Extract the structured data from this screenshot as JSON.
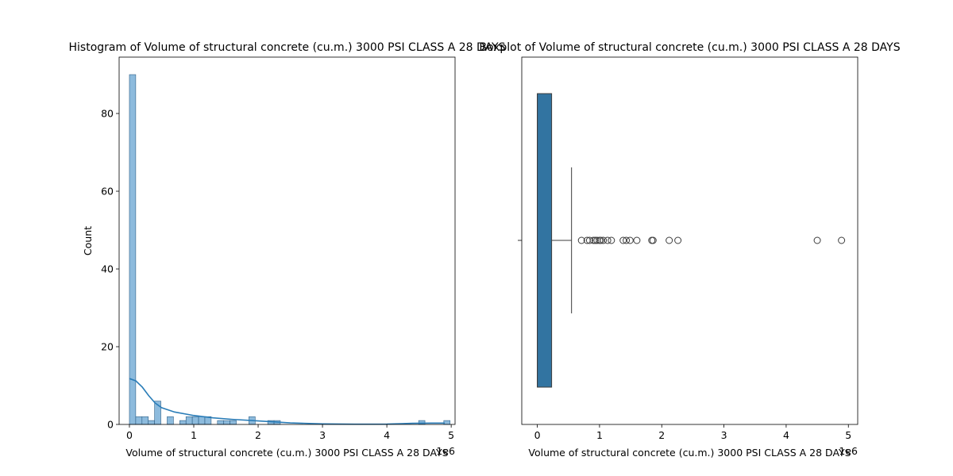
{
  "chart_data": [
    {
      "type": "histogram",
      "title": "Histogram of Volume of structural concrete (cu.m.) 3000 PSI  CLASS A 28 DAYS",
      "xlabel": "Volume of structural concrete (cu.m.) 3000 PSI  CLASS A 28 DAYS",
      "ylabel": "Count",
      "x_scale_label": "1e6",
      "xlim": [
        -0.16,
        5.06
      ],
      "ylim": [
        0,
        94.5
      ],
      "x_ticks": [
        0,
        1,
        2,
        3,
        4,
        5
      ],
      "x_tick_labels": [
        "0",
        "1",
        "2",
        "3",
        "4",
        "5"
      ],
      "y_ticks": [
        0,
        20,
        40,
        60,
        80
      ],
      "y_tick_labels": [
        "0",
        "20",
        "40",
        "60",
        "80"
      ],
      "bin_width": 0.0977,
      "bins_start": [
        0.0,
        0.0977,
        0.1954,
        0.2931,
        0.3908,
        0.5862,
        0.7816,
        0.8793,
        0.977,
        1.0747,
        1.1724,
        1.3678,
        1.4655,
        1.5632,
        1.8563,
        2.1494,
        2.2471,
        4.4942,
        4.885
      ],
      "counts": [
        90,
        2,
        2,
        1,
        6,
        2,
        1,
        2,
        2,
        2,
        2,
        1,
        1,
        1,
        2,
        1,
        1,
        1,
        1
      ],
      "kde": {
        "x": [
          0.0,
          0.1,
          0.2,
          0.3,
          0.4,
          0.5,
          0.7,
          1.0,
          1.3,
          1.6,
          1.9,
          2.2,
          2.5,
          3.0,
          3.5,
          4.0,
          4.4,
          4.7,
          4.9
        ],
        "y": [
          11.8,
          11.2,
          9.6,
          7.4,
          5.5,
          4.3,
          3.2,
          2.3,
          1.7,
          1.3,
          1.0,
          0.7,
          0.4,
          0.15,
          0.07,
          0.08,
          0.3,
          0.35,
          0.35
        ]
      },
      "colors": {
        "bar_fill": "#8dbbdd",
        "bar_edge": "#2d5f87",
        "kde": "#2a7db8"
      }
    },
    {
      "type": "boxplot",
      "title": "Boxplot of Volume of structural concrete (cu.m.) 3000 PSI  CLASS A 28 DAYS",
      "xlabel": "Volume of structural concrete (cu.m.) 3000 PSI  CLASS A 28 DAYS",
      "x_scale_label": "1e6",
      "xlim": [
        -0.25,
        5.15
      ],
      "x_ticks": [
        0,
        1,
        2,
        3,
        4,
        5
      ],
      "x_tick_labels": [
        "0",
        "1",
        "2",
        "3",
        "4",
        "5"
      ],
      "box": {
        "min": 0.0,
        "q1": 0.0,
        "median": 0.0,
        "q3": 0.23,
        "whisker_high": 0.55
      },
      "outliers": [
        0.71,
        0.8,
        0.84,
        0.9,
        0.93,
        0.96,
        1.0,
        1.02,
        1.06,
        1.13,
        1.19,
        1.38,
        1.43,
        1.49,
        1.6,
        1.84,
        1.86,
        2.12,
        2.26,
        4.5,
        4.89
      ],
      "colors": {
        "box_fill": "#3274a1",
        "line": "#3c3c3c"
      }
    }
  ]
}
